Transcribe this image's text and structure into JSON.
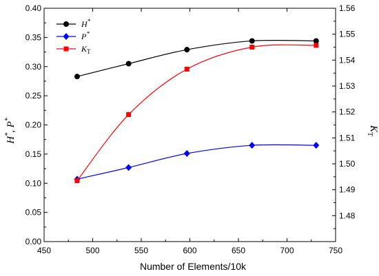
{
  "chart_data": {
    "type": "line",
    "x": [
      484,
      537,
      597,
      664,
      730
    ],
    "xlabel": "Number of Elements/10k",
    "xlim": [
      450,
      750
    ],
    "xticks": [
      450,
      500,
      550,
      600,
      650,
      700,
      750
    ],
    "ylabel_left": {
      "main": "H",
      "sup1": "*",
      "sep": ", ",
      "main2": "P",
      "sup2": "*"
    },
    "ylim_left": [
      0.0,
      0.4
    ],
    "yticks_left": [
      "0.00",
      "0.05",
      "0.10",
      "0.15",
      "0.20",
      "0.25",
      "0.30",
      "0.35",
      "0.40"
    ],
    "ylabel_right": {
      "main": "K",
      "sub": "T"
    },
    "ylim_right": [
      1.47,
      1.56
    ],
    "yticks_right": [
      "1.48",
      "1.49",
      "1.50",
      "1.51",
      "1.52",
      "1.53",
      "1.54",
      "1.55",
      "1.56"
    ],
    "legend_position": "top-left",
    "series": [
      {
        "name": "H",
        "sup": "*",
        "sub": "",
        "axis": "left",
        "color": "#000000",
        "marker": "circle",
        "values": [
          0.283,
          0.305,
          0.329,
          0.344,
          0.344
        ]
      },
      {
        "name": "P",
        "sup": "*",
        "sub": "",
        "axis": "left",
        "color": "#0000ff",
        "marker": "diamond",
        "values": [
          0.107,
          0.127,
          0.151,
          0.165,
          0.165
        ]
      },
      {
        "name": "K",
        "sup": "",
        "sub": "T",
        "axis": "right",
        "color": "#ff0000",
        "marker": "square",
        "values": [
          1.4935,
          1.519,
          1.5365,
          1.545,
          1.5457
        ]
      }
    ]
  }
}
